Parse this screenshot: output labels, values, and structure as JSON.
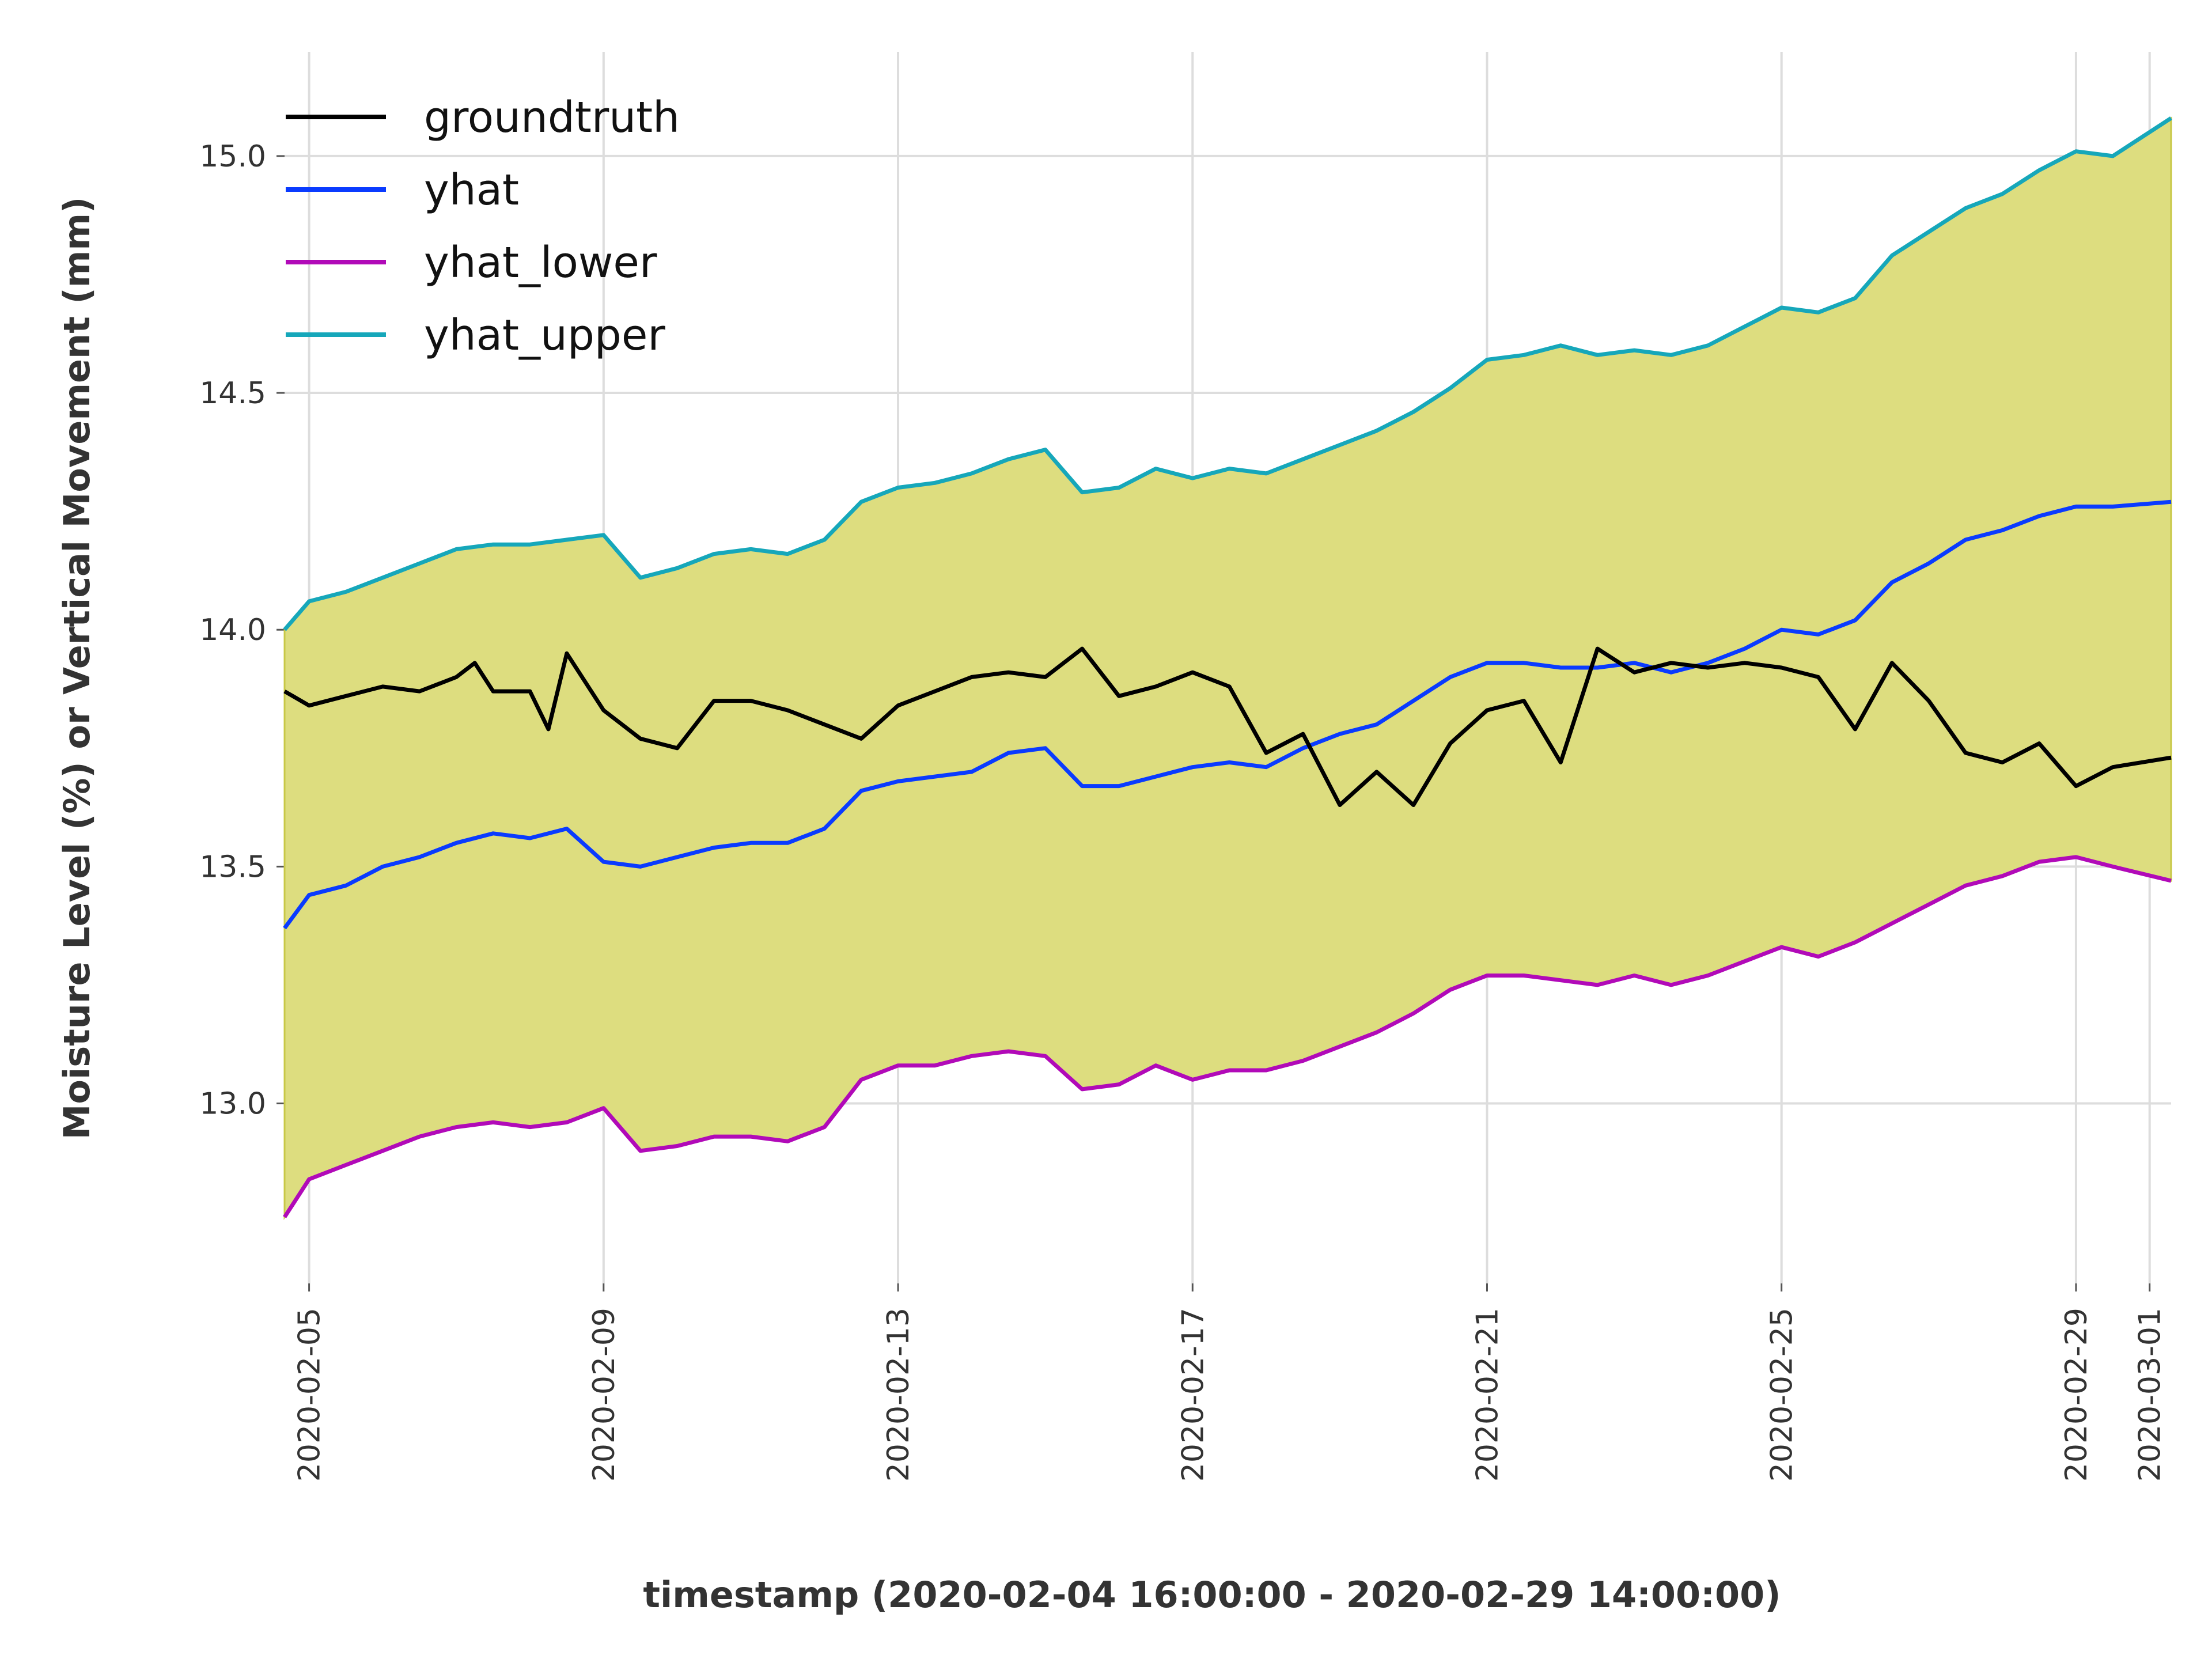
{
  "chart_data": {
    "type": "line",
    "xlabel": "timestamp (2020-02-04 16:00:00 - 2020-02-29 14:00:00)",
    "ylabel": "Moisture Level (%) or Vertical Movement (mm)",
    "x_range": [
      "2020-02-04 16:00",
      "2020-03-01 07:00"
    ],
    "ylim": [
      12.62,
      15.22
    ],
    "x_ticks": [
      "2020-02-05",
      "2020-02-09",
      "2020-02-13",
      "2020-02-17",
      "2020-02-21",
      "2020-02-25",
      "2020-02-29",
      "2020-03-01"
    ],
    "y_ticks": [
      "13.0",
      "13.5",
      "14.0",
      "14.5",
      "15.0"
    ],
    "grid": true,
    "legend_position": "top-left",
    "fill_between": {
      "lower": "yhat_lower",
      "upper": "yhat_upper",
      "color": "#dddd7f"
    },
    "series": [
      {
        "name": "groundtruth",
        "color": "#000000",
        "x": [
          "2020-02-04 16:00",
          "2020-02-05 00:00",
          "2020-02-05 12:00",
          "2020-02-06 00:00",
          "2020-02-06 12:00",
          "2020-02-07 00:00",
          "2020-02-07 06:00",
          "2020-02-07 12:00",
          "2020-02-08 00:00",
          "2020-02-08 06:00",
          "2020-02-08 12:00",
          "2020-02-09 00:00",
          "2020-02-09 12:00",
          "2020-02-10 00:00",
          "2020-02-10 12:00",
          "2020-02-11 00:00",
          "2020-02-11 12:00",
          "2020-02-12 00:00",
          "2020-02-12 12:00",
          "2020-02-13 00:00",
          "2020-02-13 12:00",
          "2020-02-14 00:00",
          "2020-02-14 12:00",
          "2020-02-15 00:00",
          "2020-02-15 12:00",
          "2020-02-16 00:00",
          "2020-02-16 12:00",
          "2020-02-17 00:00",
          "2020-02-17 12:00",
          "2020-02-18 00:00",
          "2020-02-18 12:00",
          "2020-02-19 00:00",
          "2020-02-19 12:00",
          "2020-02-20 00:00",
          "2020-02-20 12:00",
          "2020-02-21 00:00",
          "2020-02-21 12:00",
          "2020-02-22 00:00",
          "2020-02-22 12:00",
          "2020-02-23 00:00",
          "2020-02-23 12:00",
          "2020-02-24 00:00",
          "2020-02-24 12:00",
          "2020-02-25 00:00",
          "2020-02-25 12:00",
          "2020-02-26 00:00",
          "2020-02-26 12:00",
          "2020-02-27 00:00",
          "2020-02-27 12:00",
          "2020-02-28 00:00",
          "2020-02-28 12:00",
          "2020-02-29 00:00",
          "2020-02-29 12:00",
          "2020-03-01 07:00"
        ],
        "values": [
          13.87,
          13.84,
          13.86,
          13.88,
          13.87,
          13.9,
          13.93,
          13.87,
          13.87,
          13.79,
          13.95,
          13.83,
          13.77,
          13.75,
          13.85,
          13.85,
          13.83,
          13.8,
          13.77,
          13.84,
          13.87,
          13.9,
          13.91,
          13.9,
          13.96,
          13.86,
          13.88,
          13.91,
          13.88,
          13.74,
          13.78,
          13.63,
          13.7,
          13.63,
          13.76,
          13.83,
          13.85,
          13.72,
          13.96,
          13.91,
          13.93,
          13.92,
          13.93,
          13.92,
          13.9,
          13.79,
          13.93,
          13.85,
          13.74,
          13.72,
          13.76,
          13.67,
          13.71,
          13.73
        ]
      },
      {
        "name": "yhat",
        "color": "#0a3bff",
        "x": [
          "2020-02-04 16:00",
          "2020-02-05 00:00",
          "2020-02-05 12:00",
          "2020-02-06 00:00",
          "2020-02-06 12:00",
          "2020-02-07 00:00",
          "2020-02-07 12:00",
          "2020-02-08 00:00",
          "2020-02-08 12:00",
          "2020-02-09 00:00",
          "2020-02-09 12:00",
          "2020-02-10 00:00",
          "2020-02-10 12:00",
          "2020-02-11 00:00",
          "2020-02-11 12:00",
          "2020-02-12 00:00",
          "2020-02-12 12:00",
          "2020-02-13 00:00",
          "2020-02-13 12:00",
          "2020-02-14 00:00",
          "2020-02-14 12:00",
          "2020-02-15 00:00",
          "2020-02-15 12:00",
          "2020-02-16 00:00",
          "2020-02-16 12:00",
          "2020-02-17 00:00",
          "2020-02-17 12:00",
          "2020-02-18 00:00",
          "2020-02-18 12:00",
          "2020-02-19 00:00",
          "2020-02-19 12:00",
          "2020-02-20 00:00",
          "2020-02-20 12:00",
          "2020-02-21 00:00",
          "2020-02-21 12:00",
          "2020-02-22 00:00",
          "2020-02-22 12:00",
          "2020-02-23 00:00",
          "2020-02-23 12:00",
          "2020-02-24 00:00",
          "2020-02-24 12:00",
          "2020-02-25 00:00",
          "2020-02-25 12:00",
          "2020-02-26 00:00",
          "2020-02-26 12:00",
          "2020-02-27 00:00",
          "2020-02-27 12:00",
          "2020-02-28 00:00",
          "2020-02-28 12:00",
          "2020-02-29 00:00",
          "2020-02-29 12:00",
          "2020-03-01 07:00"
        ],
        "values": [
          13.37,
          13.44,
          13.46,
          13.5,
          13.52,
          13.55,
          13.57,
          13.56,
          13.58,
          13.51,
          13.5,
          13.52,
          13.54,
          13.55,
          13.55,
          13.58,
          13.66,
          13.68,
          13.69,
          13.7,
          13.74,
          13.75,
          13.67,
          13.67,
          13.69,
          13.71,
          13.72,
          13.71,
          13.75,
          13.78,
          13.8,
          13.85,
          13.9,
          13.93,
          13.93,
          13.92,
          13.92,
          13.93,
          13.91,
          13.93,
          13.96,
          14.0,
          13.99,
          14.02,
          14.1,
          14.14,
          14.19,
          14.21,
          14.24,
          14.26,
          14.26,
          14.27
        ]
      },
      {
        "name": "yhat_lower",
        "color": "#b10ab8",
        "x": [
          "2020-02-04 16:00",
          "2020-02-05 00:00",
          "2020-02-05 12:00",
          "2020-02-06 00:00",
          "2020-02-06 12:00",
          "2020-02-07 00:00",
          "2020-02-07 12:00",
          "2020-02-08 00:00",
          "2020-02-08 12:00",
          "2020-02-09 00:00",
          "2020-02-09 12:00",
          "2020-02-10 00:00",
          "2020-02-10 12:00",
          "2020-02-11 00:00",
          "2020-02-11 12:00",
          "2020-02-12 00:00",
          "2020-02-12 12:00",
          "2020-02-13 00:00",
          "2020-02-13 12:00",
          "2020-02-14 00:00",
          "2020-02-14 12:00",
          "2020-02-15 00:00",
          "2020-02-15 12:00",
          "2020-02-16 00:00",
          "2020-02-16 12:00",
          "2020-02-17 00:00",
          "2020-02-17 12:00",
          "2020-02-18 00:00",
          "2020-02-18 12:00",
          "2020-02-19 00:00",
          "2020-02-19 12:00",
          "2020-02-20 00:00",
          "2020-02-20 12:00",
          "2020-02-21 00:00",
          "2020-02-21 12:00",
          "2020-02-22 00:00",
          "2020-02-22 12:00",
          "2020-02-23 00:00",
          "2020-02-23 12:00",
          "2020-02-24 00:00",
          "2020-02-24 12:00",
          "2020-02-25 00:00",
          "2020-02-25 12:00",
          "2020-02-26 00:00",
          "2020-02-26 12:00",
          "2020-02-27 00:00",
          "2020-02-27 12:00",
          "2020-02-28 00:00",
          "2020-02-28 12:00",
          "2020-02-29 00:00",
          "2020-02-29 12:00",
          "2020-03-01 07:00"
        ],
        "values": [
          12.76,
          12.84,
          12.87,
          12.9,
          12.93,
          12.95,
          12.96,
          12.95,
          12.96,
          12.99,
          12.9,
          12.91,
          12.93,
          12.93,
          12.92,
          12.95,
          13.05,
          13.08,
          13.08,
          13.1,
          13.11,
          13.1,
          13.03,
          13.04,
          13.08,
          13.05,
          13.07,
          13.07,
          13.09,
          13.12,
          13.15,
          13.19,
          13.24,
          13.27,
          13.27,
          13.26,
          13.25,
          13.27,
          13.25,
          13.27,
          13.3,
          13.33,
          13.31,
          13.34,
          13.38,
          13.42,
          13.46,
          13.48,
          13.51,
          13.52,
          13.5,
          13.47
        ]
      },
      {
        "name": "yhat_upper",
        "color": "#16a7ba",
        "x": [
          "2020-02-04 16:00",
          "2020-02-05 00:00",
          "2020-02-05 12:00",
          "2020-02-06 00:00",
          "2020-02-06 12:00",
          "2020-02-07 00:00",
          "2020-02-07 12:00",
          "2020-02-08 00:00",
          "2020-02-08 12:00",
          "2020-02-09 00:00",
          "2020-02-09 12:00",
          "2020-02-10 00:00",
          "2020-02-10 12:00",
          "2020-02-11 00:00",
          "2020-02-11 12:00",
          "2020-02-12 00:00",
          "2020-02-12 12:00",
          "2020-02-13 00:00",
          "2020-02-13 12:00",
          "2020-02-14 00:00",
          "2020-02-14 12:00",
          "2020-02-15 00:00",
          "2020-02-15 12:00",
          "2020-02-16 00:00",
          "2020-02-16 12:00",
          "2020-02-17 00:00",
          "2020-02-17 12:00",
          "2020-02-18 00:00",
          "2020-02-18 12:00",
          "2020-02-19 00:00",
          "2020-02-19 12:00",
          "2020-02-20 00:00",
          "2020-02-20 12:00",
          "2020-02-21 00:00",
          "2020-02-21 12:00",
          "2020-02-22 00:00",
          "2020-02-22 12:00",
          "2020-02-23 00:00",
          "2020-02-23 12:00",
          "2020-02-24 00:00",
          "2020-02-24 12:00",
          "2020-02-25 00:00",
          "2020-02-25 12:00",
          "2020-02-26 00:00",
          "2020-02-26 12:00",
          "2020-02-27 00:00",
          "2020-02-27 12:00",
          "2020-02-28 00:00",
          "2020-02-28 12:00",
          "2020-02-29 00:00",
          "2020-02-29 12:00",
          "2020-03-01 07:00"
        ],
        "values": [
          14.0,
          14.06,
          14.08,
          14.11,
          14.14,
          14.17,
          14.18,
          14.18,
          14.19,
          14.2,
          14.11,
          14.13,
          14.16,
          14.17,
          14.16,
          14.19,
          14.27,
          14.3,
          14.31,
          14.33,
          14.36,
          14.38,
          14.29,
          14.3,
          14.34,
          14.32,
          14.34,
          14.33,
          14.36,
          14.39,
          14.42,
          14.46,
          14.51,
          14.57,
          14.58,
          14.6,
          14.58,
          14.59,
          14.58,
          14.6,
          14.64,
          14.68,
          14.67,
          14.7,
          14.79,
          14.84,
          14.89,
          14.92,
          14.97,
          15.01,
          15.0,
          15.08
        ]
      }
    ]
  }
}
